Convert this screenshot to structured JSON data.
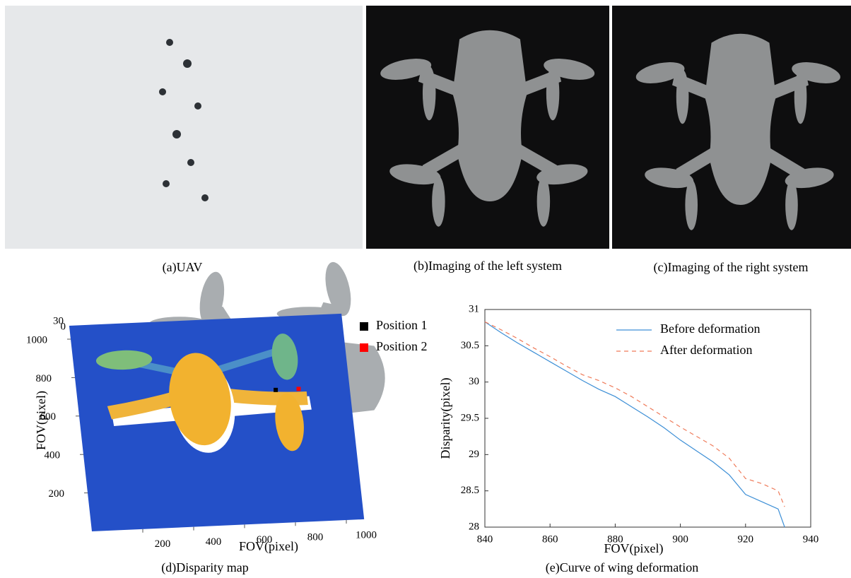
{
  "captions": [
    "(a)UAV",
    "(b)Imaging of the left system",
    "(c)Imaging of the right system",
    "(d)Disparity map",
    "(e)Curve of wing deformation"
  ],
  "chart_data": [
    {
      "type": "surface",
      "xlabel": "FOV(pixel)",
      "ylabel": "FOV(pixel)",
      "xlim": [
        0,
        1070
      ],
      "ylim": [
        0,
        1070
      ],
      "xticks": [
        200,
        400,
        600,
        800,
        1000
      ],
      "yticks": [
        200,
        400,
        600,
        800,
        1000
      ],
      "zticks": [
        0,
        30
      ],
      "series": [
        {
          "name": "Position 1",
          "color": "#000000",
          "x": [
            780
          ],
          "y": [
            690
          ]
        },
        {
          "name": "Position 2",
          "color": "#ff0000",
          "x": [
            870
          ],
          "y": [
            690
          ]
        }
      ]
    },
    {
      "type": "line",
      "xlabel": "FOV(pixel)",
      "ylabel": "Disparity(pixel)",
      "xlim": [
        840,
        940
      ],
      "ylim": [
        28,
        31
      ],
      "xticks": [
        840,
        860,
        880,
        900,
        920,
        940
      ],
      "yticks": [
        28,
        28.5,
        29,
        29.5,
        30,
        30.5,
        31
      ],
      "legend": "upper right",
      "x": [
        840,
        845,
        850,
        855,
        860,
        865,
        870,
        875,
        880,
        885,
        890,
        895,
        900,
        905,
        910,
        915,
        920,
        925,
        930,
        932
      ],
      "series": [
        {
          "name": "Before deformation",
          "color": "#3d8fd6",
          "dash": "solid",
          "values": [
            30.83,
            30.68,
            30.54,
            30.41,
            30.28,
            30.15,
            30.02,
            29.9,
            29.8,
            29.66,
            29.52,
            29.37,
            29.2,
            29.05,
            28.9,
            28.72,
            28.45,
            28.35,
            28.25,
            28.0
          ]
        },
        {
          "name": "After deformation",
          "color": "#ef7b5a",
          "dash": "dashed",
          "values": [
            30.83,
            30.72,
            30.6,
            30.47,
            30.35,
            30.22,
            30.1,
            30.02,
            29.92,
            29.8,
            29.66,
            29.52,
            29.38,
            29.25,
            29.12,
            28.95,
            28.67,
            28.6,
            28.5,
            28.28
          ]
        }
      ]
    }
  ]
}
